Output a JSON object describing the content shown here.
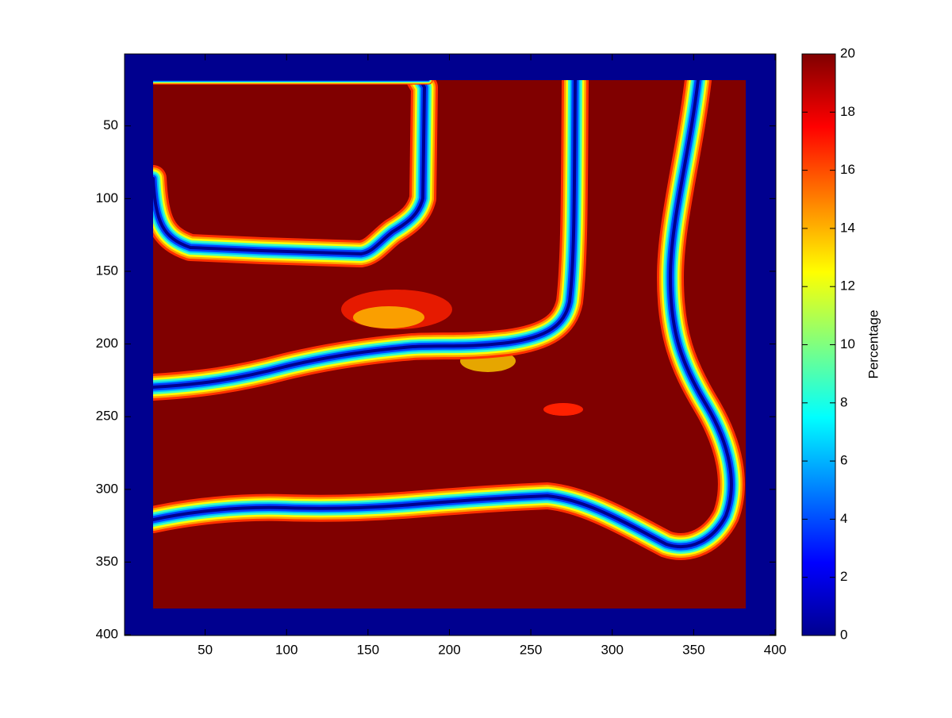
{
  "chart_data": {
    "type": "heatmap",
    "xlim": [
      0.5,
      400.5
    ],
    "ylim": [
      0.5,
      400.5
    ],
    "y_reversed": true,
    "xticks": [
      50,
      100,
      150,
      200,
      250,
      300,
      350,
      400
    ],
    "yticks": [
      50,
      100,
      150,
      200,
      250,
      300,
      350,
      400
    ],
    "colorbar": {
      "label": "Percentage",
      "lim": [
        0,
        20
      ],
      "ticks": [
        0,
        2,
        4,
        6,
        8,
        10,
        12,
        14,
        16,
        18,
        20
      ],
      "colormap": "jet"
    }
  }
}
